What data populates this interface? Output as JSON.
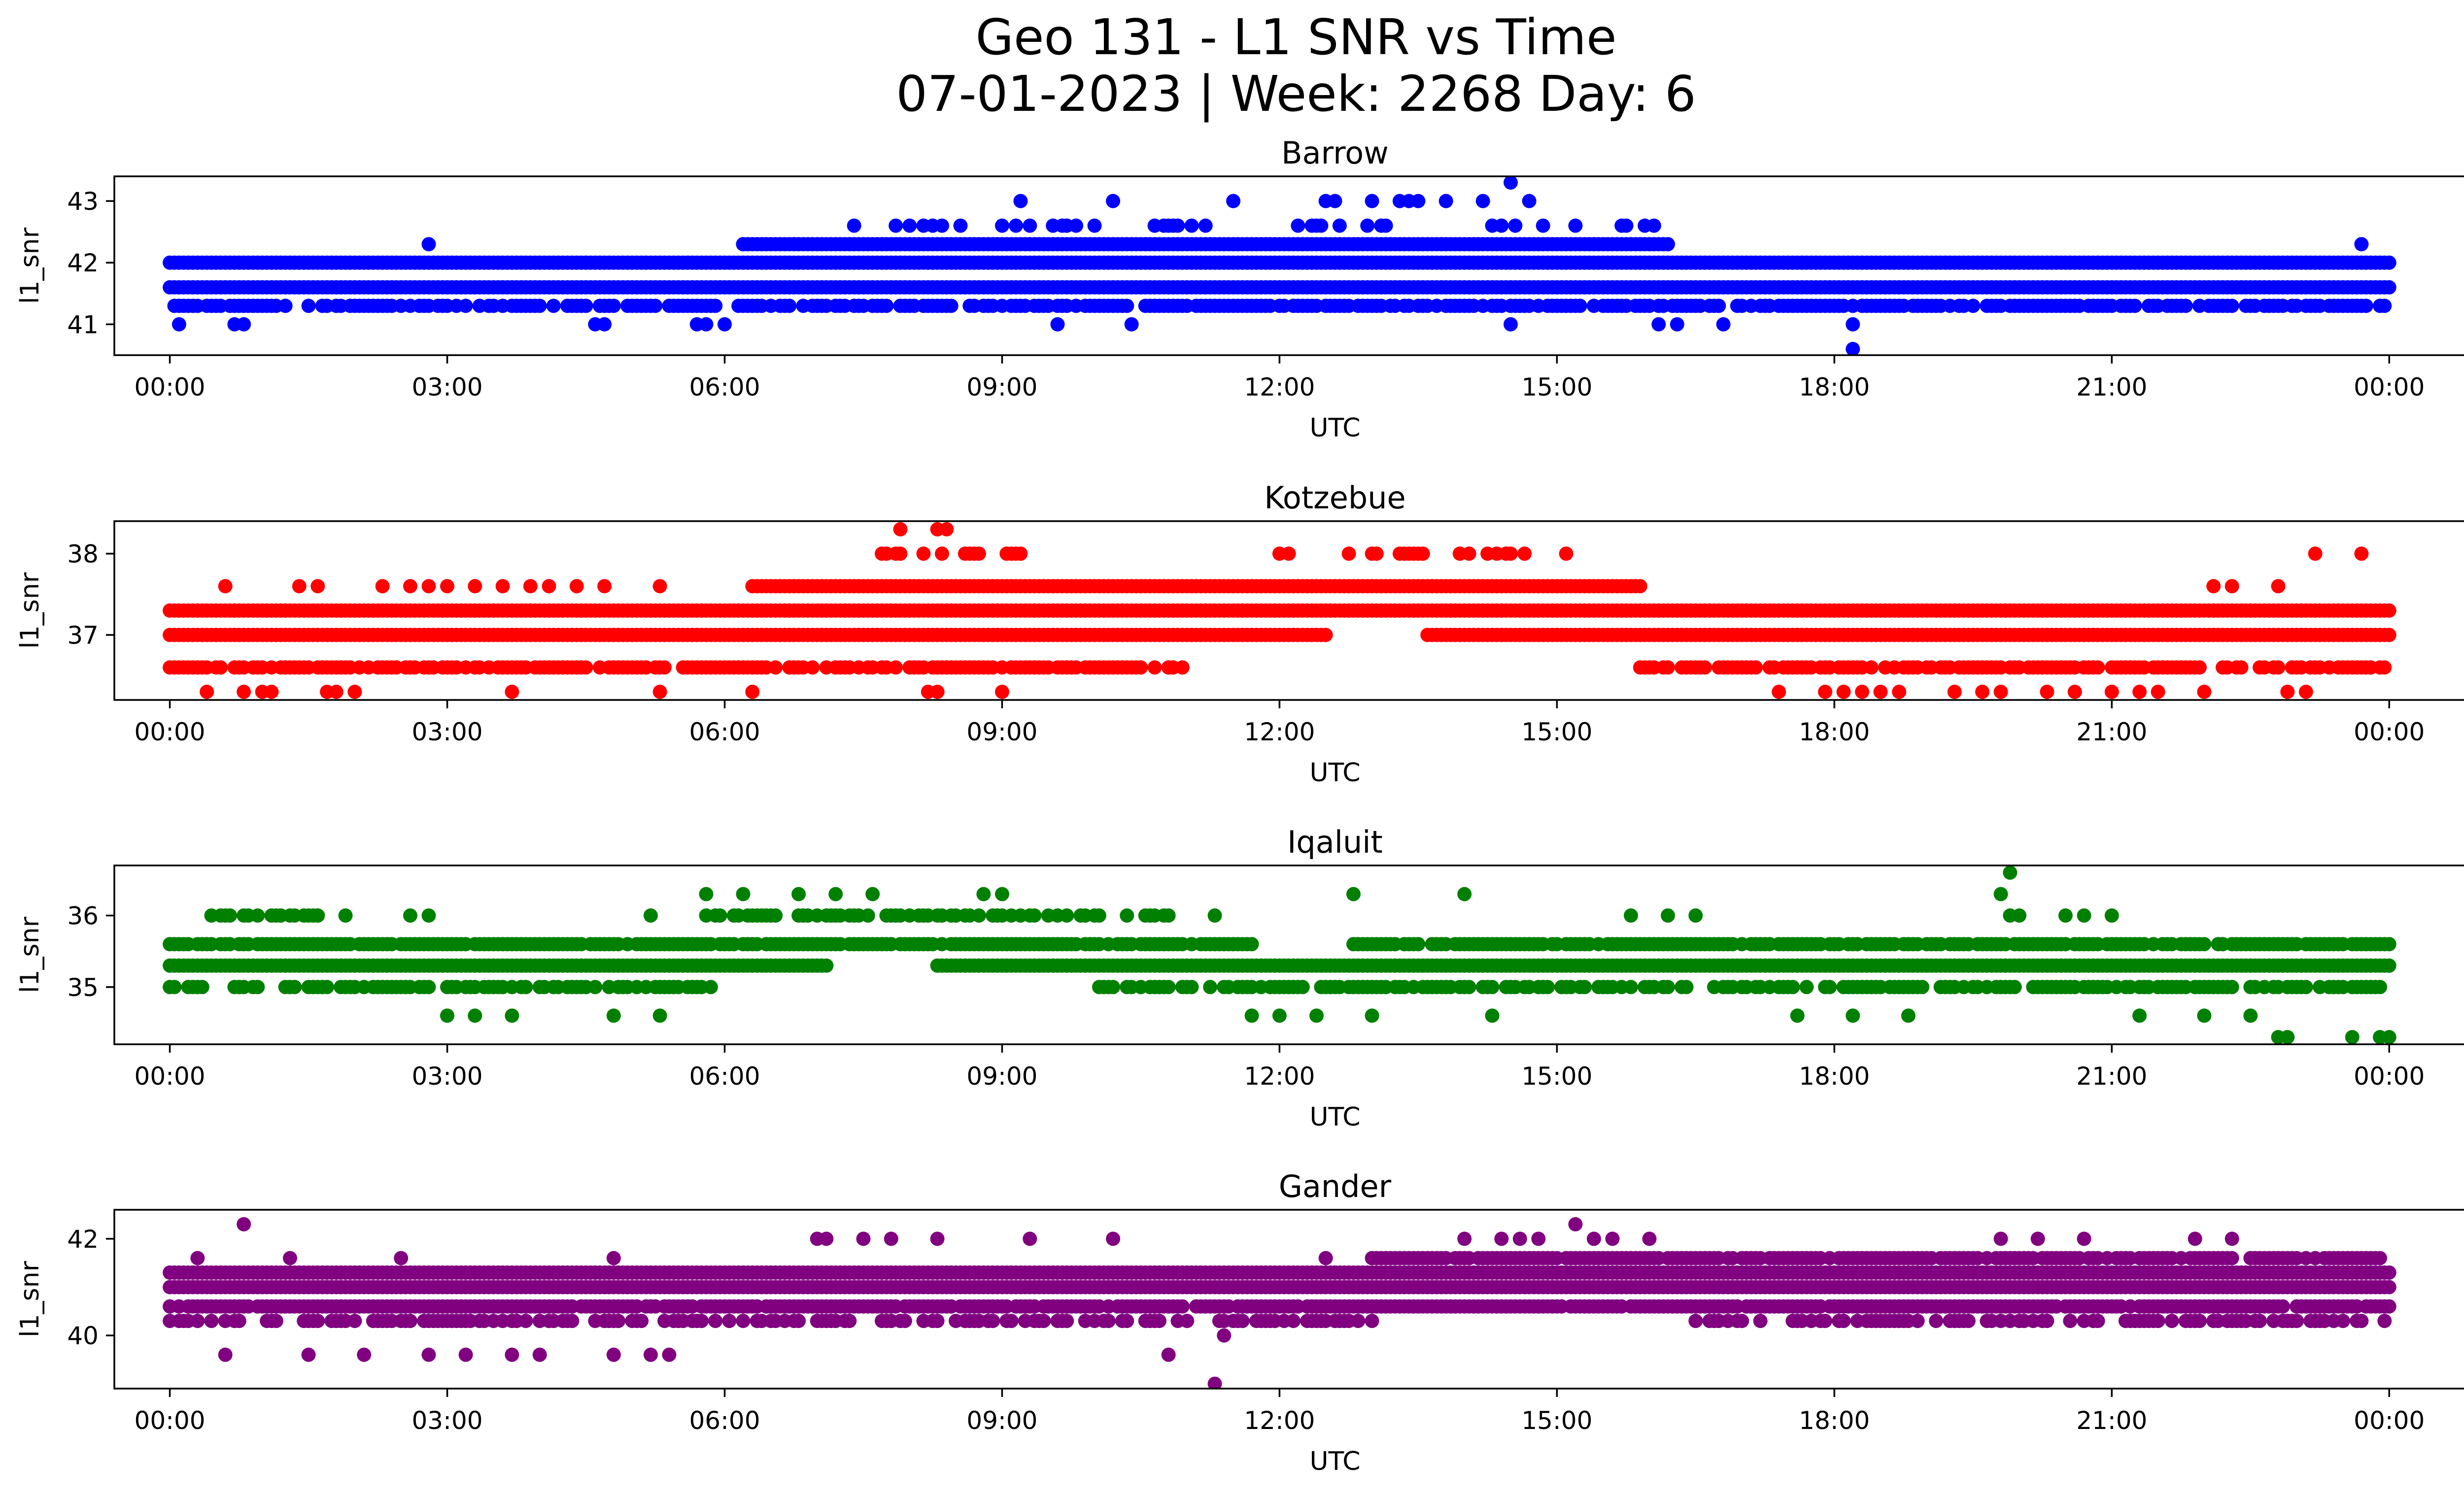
{
  "chart_data": {
    "type": "scatter",
    "title_line1": "Geo 131 - L1 SNR vs Time",
    "title_line2": "07-01-2023 | Week: 2268 Day: 6",
    "xlabel": "UTC",
    "ylabel": "l1_snr",
    "xlim_hours": [
      -0.6,
      25.8
    ],
    "x_ticks": [
      0,
      3,
      6,
      9,
      12,
      15,
      18,
      21,
      24
    ],
    "x_tick_labels": [
      "00:00",
      "03:00",
      "06:00",
      "09:00",
      "12:00",
      "15:00",
      "18:00",
      "21:00",
      "00:00"
    ],
    "panels": [
      {
        "title": "Barrow",
        "color": "#0000ff",
        "ylim": [
          40.5,
          43.4
        ],
        "y_ticks": [
          41,
          42,
          43
        ],
        "y_tick_labels": [
          "41",
          "42",
          "43"
        ],
        "bands": [
          {
            "y": 41.3,
            "segments": [
              [
                0,
                24
              ]
            ],
            "density": 0.75
          },
          {
            "y": 41.6,
            "segments": [
              [
                0,
                24
              ]
            ],
            "density": 1.0
          },
          {
            "y": 42.0,
            "segments": [
              [
                0,
                24
              ]
            ],
            "density": 1.0
          },
          {
            "y": 42.3,
            "segments": [
              [
                6.2,
                16.2
              ]
            ],
            "density": 1.0
          },
          {
            "y": 42.6,
            "segments": [
              [
                7.3,
                16.3
              ]
            ],
            "density": 0.3
          }
        ],
        "outliers": [
          [
            0.1,
            41.0
          ],
          [
            0.7,
            41.0
          ],
          [
            0.8,
            41.0
          ],
          [
            2.8,
            42.3
          ],
          [
            4.6,
            41.0
          ],
          [
            4.7,
            41.0
          ],
          [
            5.7,
            41.0
          ],
          [
            5.8,
            41.0
          ],
          [
            6.0,
            41.0
          ],
          [
            6.2,
            42.3
          ],
          [
            9.2,
            43.0
          ],
          [
            9.6,
            41.0
          ],
          [
            10.2,
            43.0
          ],
          [
            10.4,
            41.0
          ],
          [
            11.5,
            43.0
          ],
          [
            12.5,
            43.0
          ],
          [
            12.6,
            43.0
          ],
          [
            13.0,
            43.0
          ],
          [
            13.3,
            43.0
          ],
          [
            13.4,
            43.0
          ],
          [
            13.5,
            43.0
          ],
          [
            13.8,
            43.0
          ],
          [
            14.2,
            43.0
          ],
          [
            14.5,
            43.3
          ],
          [
            14.7,
            43.0
          ],
          [
            14.5,
            41.0
          ],
          [
            16.1,
            41.0
          ],
          [
            16.3,
            41.0
          ],
          [
            16.8,
            41.0
          ],
          [
            18.2,
            40.6
          ],
          [
            18.2,
            41.0
          ],
          [
            23.7,
            42.3
          ]
        ]
      },
      {
        "title": "Kotzebue",
        "color": "#ff0000",
        "ylim": [
          36.2,
          38.4
        ],
        "y_ticks": [
          37,
          38
        ],
        "y_tick_labels": [
          "37",
          "38"
        ],
        "bands": [
          {
            "y": 36.6,
            "segments": [
              [
                0,
                11.0
              ],
              [
                15.9,
                24
              ]
            ],
            "density": 0.8
          },
          {
            "y": 37.0,
            "segments": [
              [
                0,
                12.5
              ],
              [
                13.6,
                24
              ]
            ],
            "density": 1.0
          },
          {
            "y": 37.3,
            "segments": [
              [
                0,
                24
              ]
            ],
            "density": 1.0
          },
          {
            "y": 37.6,
            "segments": [
              [
                6.3,
                15.9
              ]
            ],
            "density": 1.0
          },
          {
            "y": 38.0,
            "segments": [
              [
                7.7,
                9.4
              ],
              [
                12.7,
                14.7
              ]
            ],
            "density": 0.35
          }
        ],
        "outliers": [
          [
            0.4,
            36.3
          ],
          [
            0.6,
            37.6
          ],
          [
            0.8,
            36.3
          ],
          [
            1.0,
            36.3
          ],
          [
            1.1,
            36.3
          ],
          [
            1.4,
            37.6
          ],
          [
            1.6,
            37.6
          ],
          [
            1.7,
            36.3
          ],
          [
            1.8,
            36.3
          ],
          [
            2.0,
            36.3
          ],
          [
            2.3,
            37.6
          ],
          [
            2.6,
            37.6
          ],
          [
            2.8,
            37.6
          ],
          [
            3.0,
            37.6
          ],
          [
            3.3,
            37.6
          ],
          [
            3.6,
            37.6
          ],
          [
            3.7,
            36.3
          ],
          [
            3.9,
            37.6
          ],
          [
            4.1,
            37.6
          ],
          [
            4.4,
            37.6
          ],
          [
            4.7,
            37.6
          ],
          [
            5.3,
            37.6
          ],
          [
            5.3,
            36.3
          ],
          [
            6.3,
            36.3
          ],
          [
            7.9,
            38.3
          ],
          [
            8.3,
            38.3
          ],
          [
            8.4,
            38.3
          ],
          [
            8.2,
            36.3
          ],
          [
            8.3,
            36.3
          ],
          [
            9.0,
            36.3
          ],
          [
            10.8,
            36.6
          ],
          [
            12.0,
            38.0
          ],
          [
            12.1,
            38.0
          ],
          [
            15.1,
            38.0
          ],
          [
            17.4,
            36.3
          ],
          [
            17.9,
            36.3
          ],
          [
            18.1,
            36.3
          ],
          [
            18.3,
            36.3
          ],
          [
            18.5,
            36.3
          ],
          [
            18.7,
            36.3
          ],
          [
            19.3,
            36.3
          ],
          [
            19.6,
            36.3
          ],
          [
            19.8,
            36.3
          ],
          [
            20.3,
            36.3
          ],
          [
            20.6,
            36.3
          ],
          [
            21.0,
            36.3
          ],
          [
            21.3,
            36.3
          ],
          [
            21.5,
            36.3
          ],
          [
            22.0,
            36.3
          ],
          [
            22.1,
            37.6
          ],
          [
            22.3,
            37.6
          ],
          [
            22.8,
            37.6
          ],
          [
            22.9,
            36.3
          ],
          [
            23.1,
            36.3
          ],
          [
            23.2,
            38.0
          ],
          [
            23.7,
            38.0
          ],
          [
            23.8,
            36.6
          ]
        ]
      },
      {
        "title": "Iqaluit",
        "color": "#008000",
        "ylim": [
          34.2,
          36.7
        ],
        "y_ticks": [
          35,
          36
        ],
        "y_tick_labels": [
          "35",
          "36"
        ],
        "bands": [
          {
            "y": 35.0,
            "segments": [
              [
                0,
                0.4
              ],
              [
                0.6,
                2.8
              ],
              [
                3.0,
                4.6
              ],
              [
                4.7,
                5.9
              ],
              [
                10.0,
                24
              ]
            ],
            "density": 0.7
          },
          {
            "y": 35.3,
            "segments": [
              [
                0,
                7.1
              ],
              [
                8.3,
                24
              ]
            ],
            "density": 1.0
          },
          {
            "y": 35.6,
            "segments": [
              [
                0,
                11.7
              ],
              [
                12.8,
                24
              ]
            ],
            "density": 0.9
          },
          {
            "y": 36.0,
            "segments": [
              [
                0.4,
                1.6
              ],
              [
                5.8,
                10.8
              ]
            ],
            "density": 0.55
          }
        ],
        "outliers": [
          [
            1.6,
            36.0
          ],
          [
            1.9,
            36.0
          ],
          [
            2.6,
            36.0
          ],
          [
            2.8,
            36.0
          ],
          [
            3.0,
            34.6
          ],
          [
            3.3,
            34.6
          ],
          [
            3.7,
            34.6
          ],
          [
            4.8,
            34.6
          ],
          [
            5.2,
            36.0
          ],
          [
            5.3,
            34.6
          ],
          [
            5.8,
            36.3
          ],
          [
            6.2,
            36.3
          ],
          [
            6.8,
            36.3
          ],
          [
            7.2,
            36.3
          ],
          [
            7.6,
            36.3
          ],
          [
            8.8,
            36.3
          ],
          [
            9.0,
            36.3
          ],
          [
            11.3,
            36.0
          ],
          [
            11.7,
            34.6
          ],
          [
            12.0,
            34.6
          ],
          [
            12.4,
            34.6
          ],
          [
            12.8,
            36.3
          ],
          [
            13.0,
            34.6
          ],
          [
            14.0,
            36.3
          ],
          [
            14.3,
            34.6
          ],
          [
            15.8,
            36.0
          ],
          [
            16.2,
            36.0
          ],
          [
            16.5,
            36.0
          ],
          [
            17.6,
            34.6
          ],
          [
            18.2,
            34.6
          ],
          [
            18.8,
            34.6
          ],
          [
            19.8,
            36.3
          ],
          [
            19.9,
            36.6
          ],
          [
            19.9,
            36.0
          ],
          [
            20.0,
            36.0
          ],
          [
            20.5,
            36.0
          ],
          [
            20.7,
            36.0
          ],
          [
            21.0,
            36.0
          ],
          [
            21.3,
            34.6
          ],
          [
            22.0,
            34.6
          ],
          [
            22.5,
            34.6
          ],
          [
            22.8,
            34.3
          ],
          [
            22.9,
            34.3
          ],
          [
            23.6,
            34.3
          ],
          [
            23.9,
            34.3
          ],
          [
            24.0,
            34.3
          ]
        ]
      },
      {
        "title": "Gander",
        "color": "#800080",
        "ylim": [
          38.9,
          42.6
        ],
        "y_ticks": [
          40,
          42
        ],
        "y_tick_labels": [
          "40",
          "42"
        ],
        "bands": [
          {
            "y": 40.3,
            "segments": [
              [
                0,
                13.0
              ],
              [
                16.5,
                24
              ]
            ],
            "density": 0.55
          },
          {
            "y": 40.6,
            "segments": [
              [
                0,
                24
              ]
            ],
            "density": 0.95
          },
          {
            "y": 41.0,
            "segments": [
              [
                0,
                24
              ]
            ],
            "density": 1.0
          },
          {
            "y": 41.3,
            "segments": [
              [
                0,
                24
              ]
            ],
            "density": 1.0
          },
          {
            "y": 41.6,
            "segments": [
              [
                13.0,
                24
              ]
            ],
            "density": 0.85
          }
        ],
        "outliers": [
          [
            0.3,
            41.6
          ],
          [
            0.6,
            39.6
          ],
          [
            0.8,
            42.3
          ],
          [
            1.3,
            41.6
          ],
          [
            1.5,
            39.6
          ],
          [
            2.1,
            39.6
          ],
          [
            2.5,
            41.6
          ],
          [
            2.8,
            39.6
          ],
          [
            3.2,
            39.6
          ],
          [
            3.7,
            39.6
          ],
          [
            4.0,
            39.6
          ],
          [
            4.8,
            41.6
          ],
          [
            4.8,
            39.6
          ],
          [
            5.2,
            39.6
          ],
          [
            5.4,
            39.6
          ],
          [
            7.0,
            42.0
          ],
          [
            7.1,
            42.0
          ],
          [
            7.5,
            42.0
          ],
          [
            7.8,
            42.0
          ],
          [
            8.3,
            42.0
          ],
          [
            9.3,
            42.0
          ],
          [
            10.2,
            42.0
          ],
          [
            10.8,
            39.6
          ],
          [
            11.3,
            39.0
          ],
          [
            11.4,
            40.0
          ],
          [
            12.5,
            41.6
          ],
          [
            14.0,
            42.0
          ],
          [
            14.4,
            42.0
          ],
          [
            14.6,
            42.0
          ],
          [
            14.8,
            42.0
          ],
          [
            15.2,
            42.3
          ],
          [
            15.4,
            42.0
          ],
          [
            15.6,
            42.0
          ],
          [
            16.0,
            42.0
          ],
          [
            19.8,
            42.0
          ],
          [
            20.2,
            42.0
          ],
          [
            20.7,
            42.0
          ],
          [
            21.9,
            42.0
          ],
          [
            22.3,
            42.0
          ],
          [
            23.7,
            40.3
          ]
        ]
      }
    ]
  }
}
